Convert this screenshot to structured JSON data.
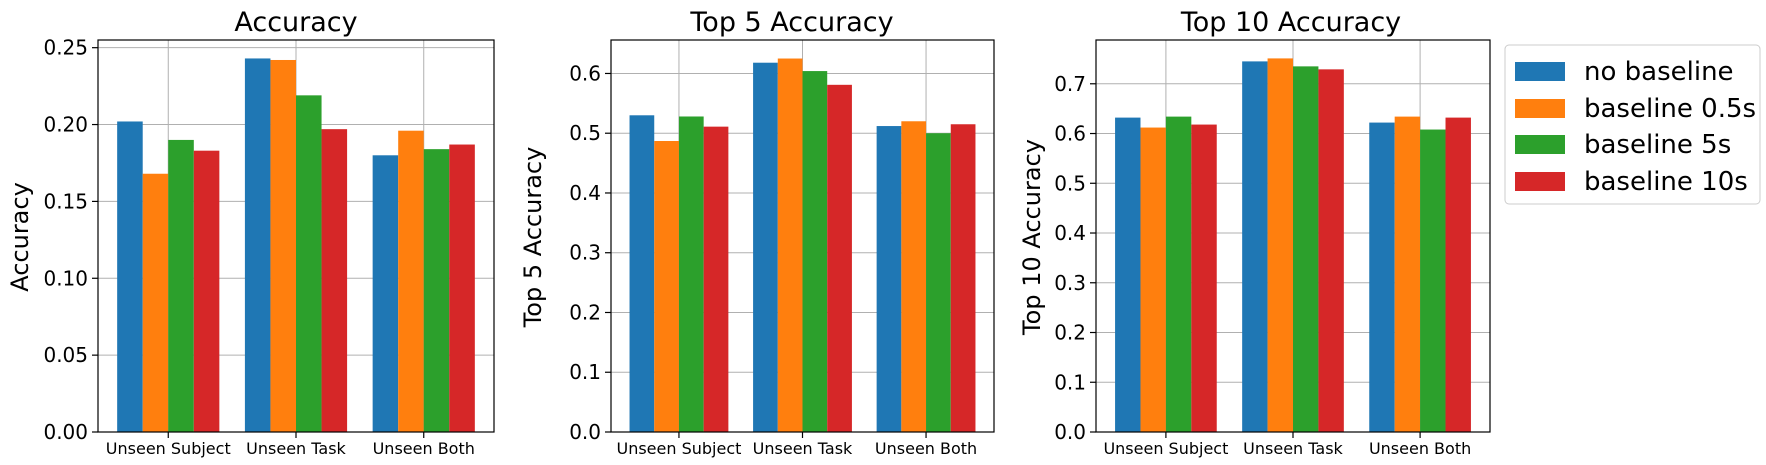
{
  "legend": {
    "items": [
      {
        "label": "no baseline",
        "color": "#1f77b4"
      },
      {
        "label": "baseline 0.5s",
        "color": "#ff7f0e"
      },
      {
        "label": "baseline 5s",
        "color": "#2ca02c"
      },
      {
        "label": "baseline 10s",
        "color": "#d62728"
      }
    ],
    "placement": "outside-right"
  },
  "chart_data": [
    {
      "type": "bar",
      "title": "Accuracy",
      "xlabel": "",
      "ylabel": "Accuracy",
      "categories": [
        "Unseen Subject",
        "Unseen Task",
        "Unseen Both"
      ],
      "ylim": [
        0,
        0.255
      ],
      "yticks": [
        0.0,
        0.05,
        0.1,
        0.15,
        0.2,
        0.25
      ],
      "ytick_labels": [
        "0.00",
        "0.05",
        "0.10",
        "0.15",
        "0.20",
        "0.25"
      ],
      "grid": true,
      "series": [
        {
          "name": "no baseline",
          "color": "#1f77b4",
          "values": [
            0.202,
            0.243,
            0.18
          ]
        },
        {
          "name": "baseline 0.5s",
          "color": "#ff7f0e",
          "values": [
            0.168,
            0.242,
            0.196
          ]
        },
        {
          "name": "baseline 5s",
          "color": "#2ca02c",
          "values": [
            0.19,
            0.219,
            0.184
          ]
        },
        {
          "name": "baseline 10s",
          "color": "#d62728",
          "values": [
            0.183,
            0.197,
            0.187
          ]
        }
      ]
    },
    {
      "type": "bar",
      "title": "Top 5 Accuracy",
      "xlabel": "",
      "ylabel": "Top 5 Accuracy",
      "categories": [
        "Unseen Subject",
        "Unseen Task",
        "Unseen Both"
      ],
      "ylim": [
        0,
        0.656
      ],
      "yticks": [
        0.0,
        0.1,
        0.2,
        0.3,
        0.4,
        0.5,
        0.6
      ],
      "ytick_labels": [
        "0.0",
        "0.1",
        "0.2",
        "0.3",
        "0.4",
        "0.5",
        "0.6"
      ],
      "grid": true,
      "series": [
        {
          "name": "no baseline",
          "color": "#1f77b4",
          "values": [
            0.53,
            0.618,
            0.512
          ]
        },
        {
          "name": "baseline 0.5s",
          "color": "#ff7f0e",
          "values": [
            0.487,
            0.625,
            0.52
          ]
        },
        {
          "name": "baseline 5s",
          "color": "#2ca02c",
          "values": [
            0.528,
            0.604,
            0.5
          ]
        },
        {
          "name": "baseline 10s",
          "color": "#d62728",
          "values": [
            0.511,
            0.581,
            0.515
          ]
        }
      ]
    },
    {
      "type": "bar",
      "title": "Top 10 Accuracy",
      "xlabel": "",
      "ylabel": "Top 10 Accuracy",
      "categories": [
        "Unseen Subject",
        "Unseen Task",
        "Unseen Both"
      ],
      "ylim": [
        0,
        0.788
      ],
      "yticks": [
        0.0,
        0.1,
        0.2,
        0.3,
        0.4,
        0.5,
        0.6,
        0.7
      ],
      "ytick_labels": [
        "0.0",
        "0.1",
        "0.2",
        "0.3",
        "0.4",
        "0.5",
        "0.6",
        "0.7"
      ],
      "grid": true,
      "series": [
        {
          "name": "no baseline",
          "color": "#1f77b4",
          "values": [
            0.632,
            0.745,
            0.622
          ]
        },
        {
          "name": "baseline 0.5s",
          "color": "#ff7f0e",
          "values": [
            0.612,
            0.751,
            0.634
          ]
        },
        {
          "name": "baseline 5s",
          "color": "#2ca02c",
          "values": [
            0.634,
            0.735,
            0.608
          ]
        },
        {
          "name": "baseline 10s",
          "color": "#d62728",
          "values": [
            0.618,
            0.729,
            0.632
          ]
        }
      ]
    }
  ]
}
